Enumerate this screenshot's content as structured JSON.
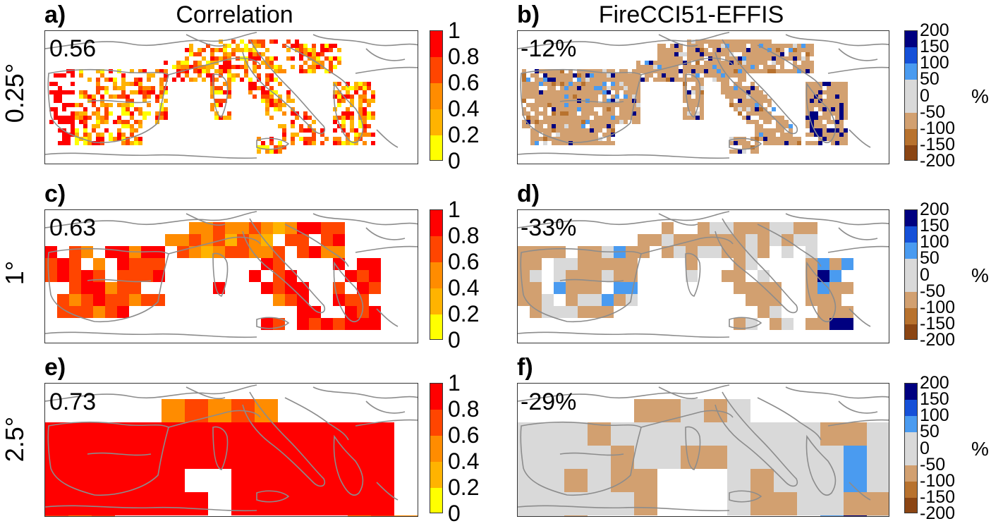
{
  "columns": {
    "left_title": "Correlation",
    "right_title": "FireCCI51-EFFIS"
  },
  "rows": [
    {
      "label": "0.25°"
    },
    {
      "label": "1°"
    },
    {
      "label": "2.5°"
    }
  ],
  "panels": [
    {
      "letter": "a)",
      "stat": "0.56"
    },
    {
      "letter": "b)",
      "stat": "-12%"
    },
    {
      "letter": "c)",
      "stat": "0.63"
    },
    {
      "letter": "d)",
      "stat": "-33%"
    },
    {
      "letter": "e)",
      "stat": "0.73"
    },
    {
      "letter": "f)",
      "stat": "-29%"
    }
  ],
  "colorbars": {
    "correlation": {
      "ticks": [
        "1",
        "0.8",
        "0.6",
        "0.4",
        "0.2",
        "0"
      ],
      "colors": [
        "#ff0000",
        "#ff4500",
        "#ff8c00",
        "#ffb300",
        "#ffff00"
      ]
    },
    "difference": {
      "ticks": [
        "200",
        "150",
        "100",
        "50",
        "0",
        "-50",
        "-100",
        "-150",
        "-200"
      ],
      "colors": [
        "#000080",
        "#1550d8",
        "#4a9bf0",
        "#d9d9d9",
        "#d9d9d9",
        "#d2a070",
        "#b8722e",
        "#8b4513"
      ],
      "unit": "%"
    }
  },
  "chart_data": [
    {
      "type": "heatmap",
      "panel": "a)",
      "column": "Correlation",
      "row": "0.25°",
      "stat": "0.56",
      "legend": {
        "ticks": [
          1,
          0.8,
          0.6,
          0.4,
          0.2,
          0
        ]
      }
    },
    {
      "type": "heatmap",
      "panel": "b)",
      "column": "FireCCI51-EFFIS",
      "row": "0.25°",
      "stat": "-12%",
      "legend": {
        "ticks": [
          200,
          150,
          100,
          50,
          0,
          -50,
          -100,
          -150,
          -200
        ],
        "unit": "%"
      }
    },
    {
      "type": "heatmap",
      "panel": "c)",
      "column": "Correlation",
      "row": "1°",
      "stat": "0.63",
      "legend": {
        "ticks": [
          1,
          0.8,
          0.6,
          0.4,
          0.2,
          0
        ]
      }
    },
    {
      "type": "heatmap",
      "panel": "d)",
      "column": "FireCCI51-EFFIS",
      "row": "1°",
      "stat": "-33%",
      "legend": {
        "ticks": [
          200,
          150,
          100,
          50,
          0,
          -50,
          -100,
          -150,
          -200
        ],
        "unit": "%"
      }
    },
    {
      "type": "heatmap",
      "panel": "e)",
      "column": "Correlation",
      "row": "2.5°",
      "stat": "0.73",
      "legend": {
        "ticks": [
          1,
          0.8,
          0.6,
          0.4,
          0.2,
          0
        ]
      }
    },
    {
      "type": "heatmap",
      "panel": "f)",
      "column": "FireCCI51-EFFIS",
      "row": "2.5°",
      "stat": "-29%",
      "legend": {
        "ticks": [
          200,
          150,
          100,
          50,
          0,
          -50,
          -100,
          -150,
          -200
        ],
        "unit": "%"
      }
    }
  ]
}
